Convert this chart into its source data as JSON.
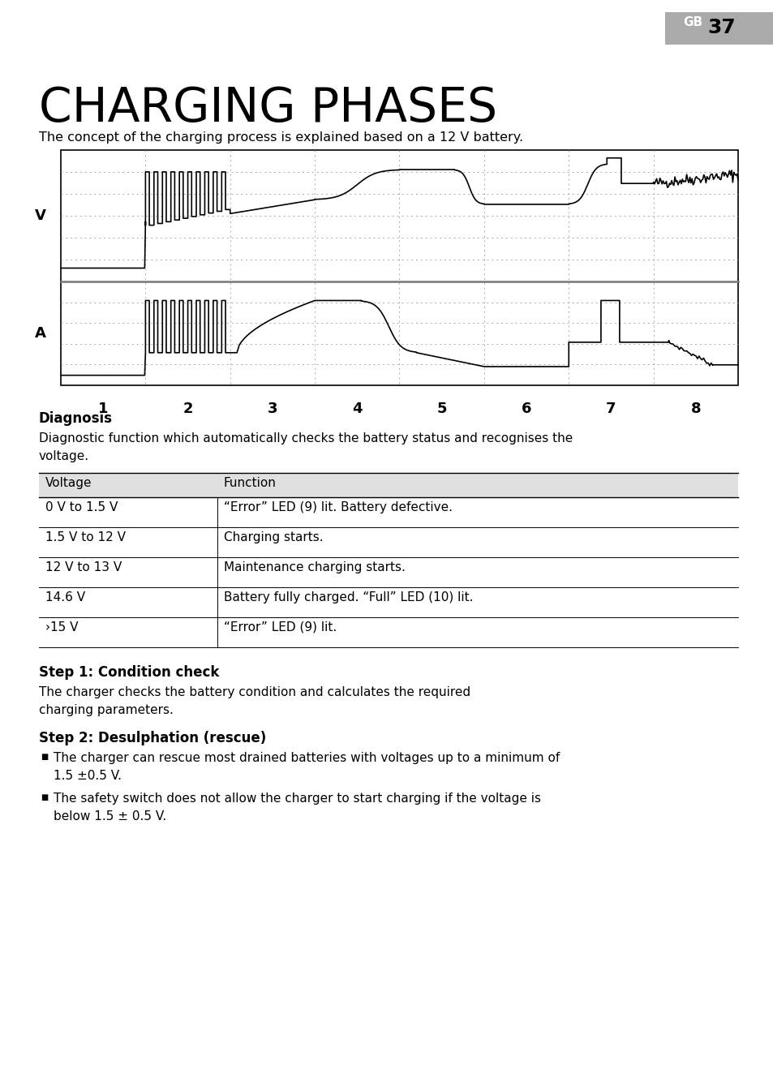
{
  "page_bg": "#ffffff",
  "header_bg": "#999999",
  "header_text": "GB",
  "page_number": "37",
  "title": "CHARGING PHASES",
  "subtitle": "The concept of the charging process is explained based on a 12 V battery.",
  "diagnosis_heading": "Diagnosis",
  "diagnosis_text": "Diagnostic function which automatically checks the battery status and recognises the\nvoltage.",
  "table_header": [
    "Voltage",
    "Function"
  ],
  "table_rows": [
    [
      "0 V to 1.5 V",
      "“Error” LED (9) lit. Battery defective."
    ],
    [
      "1.5 V to 12 V",
      "Charging starts."
    ],
    [
      "12 V to 13 V",
      "Maintenance charging starts."
    ],
    [
      "14.6 V",
      "Battery fully charged. “Full” LED (10) lit."
    ],
    [
      "›15 V",
      "“Error” LED (9) lit."
    ]
  ],
  "step1_heading": "Step 1: Condition check",
  "step1_text": "The charger checks the battery condition and calculates the required\ncharging parameters.",
  "step2_heading": "Step 2: Desulphation (rescue)",
  "step2_bullets": [
    "The charger can rescue most drained batteries with voltages up to a minimum of\n1.5 ±0.5 V.",
    "The safety switch does not allow the charger to start charging if the voltage is\nbelow 1.5 ± 0.5 V."
  ],
  "chart_ylabel_top": "V",
  "chart_ylabel_bottom": "A",
  "chart_xticks": [
    "1",
    "2",
    "3",
    "4",
    "5",
    "6",
    "7",
    "8"
  ]
}
